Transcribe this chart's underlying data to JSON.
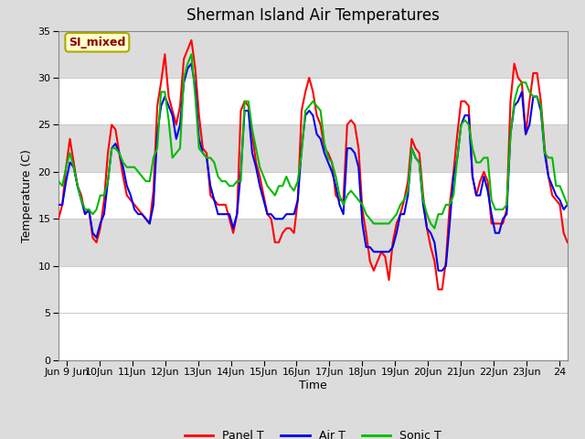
{
  "title": "Sherman Island Air Temperatures",
  "xlabel": "Time",
  "ylabel": "Temperature (C)",
  "annotation": "SI_mixed",
  "annotation_color": "#8B0000",
  "annotation_bg": "#FFFFCC",
  "annotation_edge": "#AAAA00",
  "ylim": [
    0,
    35
  ],
  "yticks": [
    0,
    5,
    10,
    15,
    20,
    25,
    30,
    35
  ],
  "xlim_start": 8.75,
  "xlim_end": 24.25,
  "xtick_positions": [
    9,
    10,
    11,
    12,
    13,
    14,
    15,
    16,
    17,
    18,
    19,
    20,
    21,
    22,
    23,
    24
  ],
  "xtick_labels": [
    "Jun 9 Jun",
    "10Jun",
    "11Jun",
    "12Jun",
    "13Jun",
    "14Jun",
    "15Jun",
    "16Jun",
    "17Jun",
    "18Jun",
    "19Jun",
    "20Jun",
    "21Jun",
    "22Jun",
    "23Jun",
    "24"
  ],
  "legend_entries": [
    "Panel T",
    "Air T",
    "Sonic T"
  ],
  "legend_colors": [
    "#FF0000",
    "#0000EE",
    "#00BB00"
  ],
  "panel_t": [
    15.0,
    16.5,
    20.5,
    23.5,
    21.0,
    18.5,
    17.5,
    15.5,
    16.0,
    13.0,
    12.5,
    14.0,
    17.0,
    22.0,
    25.0,
    24.5,
    22.0,
    19.5,
    17.5,
    17.0,
    16.5,
    16.0,
    15.5,
    15.0,
    14.5,
    18.0,
    27.0,
    29.5,
    32.5,
    28.0,
    26.5,
    25.0,
    27.0,
    32.0,
    33.0,
    34.0,
    31.0,
    26.0,
    22.5,
    22.0,
    17.5,
    17.0,
    16.5,
    16.5,
    16.5,
    15.0,
    13.5,
    15.5,
    26.5,
    27.5,
    27.0,
    24.0,
    21.0,
    19.5,
    17.5,
    15.5,
    15.0,
    12.5,
    12.5,
    13.5,
    14.0,
    14.0,
    13.5,
    17.0,
    26.5,
    28.5,
    30.0,
    28.5,
    26.0,
    25.0,
    22.5,
    22.0,
    21.0,
    17.5,
    17.0,
    17.0,
    25.0,
    25.5,
    25.0,
    22.5,
    16.0,
    13.5,
    10.5,
    9.5,
    10.5,
    11.5,
    11.0,
    8.5,
    12.5,
    14.5,
    15.5,
    17.0,
    19.0,
    23.5,
    22.5,
    22.0,
    17.5,
    14.0,
    12.0,
    10.5,
    7.5,
    7.5,
    10.5,
    16.5,
    20.0,
    24.0,
    27.5,
    27.5,
    27.0,
    19.5,
    17.5,
    19.0,
    20.0,
    19.0,
    14.5,
    14.5,
    14.5,
    14.5,
    16.0,
    27.5,
    31.5,
    30.0,
    29.5,
    24.0,
    27.5,
    30.5,
    30.5,
    27.5,
    22.5,
    19.5,
    17.5,
    17.0,
    16.5,
    13.5,
    12.5
  ],
  "air_t": [
    16.5,
    16.5,
    19.0,
    21.0,
    20.5,
    18.5,
    17.0,
    15.5,
    16.0,
    13.5,
    13.0,
    14.5,
    15.5,
    19.0,
    22.5,
    23.0,
    22.0,
    20.5,
    18.5,
    17.5,
    16.0,
    15.5,
    15.5,
    15.0,
    14.5,
    16.5,
    24.0,
    27.0,
    28.0,
    27.0,
    26.0,
    23.5,
    25.0,
    29.5,
    31.0,
    31.5,
    29.0,
    23.5,
    22.0,
    21.5,
    18.5,
    17.0,
    15.5,
    15.5,
    15.5,
    15.5,
    14.0,
    15.5,
    20.0,
    26.5,
    26.5,
    22.0,
    20.5,
    18.5,
    17.0,
    15.5,
    15.5,
    15.0,
    15.0,
    15.0,
    15.5,
    15.5,
    15.5,
    17.0,
    22.5,
    26.0,
    26.5,
    26.0,
    24.0,
    23.5,
    22.0,
    21.0,
    20.0,
    18.5,
    16.5,
    15.5,
    22.5,
    22.5,
    22.0,
    20.5,
    14.5,
    12.0,
    12.0,
    11.5,
    11.5,
    11.5,
    11.5,
    11.5,
    12.0,
    13.5,
    15.5,
    15.5,
    17.5,
    22.5,
    21.5,
    21.0,
    16.5,
    14.0,
    13.5,
    12.5,
    9.5,
    9.5,
    10.0,
    14.5,
    19.5,
    21.5,
    25.0,
    26.0,
    26.0,
    19.5,
    17.5,
    17.5,
    19.5,
    18.0,
    15.5,
    13.5,
    13.5,
    15.0,
    15.5,
    24.0,
    27.0,
    27.5,
    28.5,
    24.0,
    25.0,
    28.0,
    28.0,
    26.5,
    22.0,
    19.5,
    18.5,
    17.5,
    17.0,
    16.0,
    16.5
  ],
  "sonic_t": [
    19.0,
    18.5,
    20.5,
    22.0,
    20.5,
    18.5,
    17.0,
    16.0,
    16.0,
    15.5,
    16.0,
    17.5,
    17.5,
    19.0,
    22.5,
    22.5,
    22.0,
    21.0,
    20.5,
    20.5,
    20.5,
    20.0,
    19.5,
    19.0,
    19.0,
    21.5,
    22.5,
    28.5,
    28.5,
    25.5,
    21.5,
    22.0,
    22.5,
    30.0,
    31.5,
    32.5,
    28.0,
    22.5,
    22.0,
    21.5,
    21.5,
    21.0,
    19.5,
    19.0,
    19.0,
    18.5,
    18.5,
    19.0,
    19.0,
    27.5,
    27.5,
    24.5,
    22.5,
    20.5,
    19.5,
    18.5,
    18.0,
    17.5,
    18.5,
    18.5,
    19.5,
    18.5,
    18.0,
    19.0,
    22.0,
    26.5,
    27.0,
    27.5,
    27.0,
    26.5,
    23.0,
    21.5,
    21.0,
    19.5,
    17.5,
    16.5,
    17.5,
    18.0,
    17.5,
    17.0,
    16.5,
    15.5,
    15.0,
    14.5,
    14.5,
    14.5,
    14.5,
    14.5,
    15.0,
    15.5,
    16.5,
    17.0,
    18.0,
    22.5,
    21.5,
    21.0,
    17.0,
    15.5,
    14.5,
    14.0,
    15.5,
    15.5,
    16.5,
    16.5,
    17.5,
    21.5,
    25.0,
    25.5,
    25.0,
    22.5,
    21.0,
    21.0,
    21.5,
    21.5,
    17.0,
    16.0,
    16.0,
    16.0,
    16.5,
    24.0,
    27.5,
    29.0,
    29.5,
    29.5,
    28.5,
    28.0,
    28.0,
    27.0,
    22.0,
    21.5,
    21.5,
    18.5,
    18.5,
    17.5,
    16.5
  ],
  "panel_color": "#FF0000",
  "air_color": "#0000EE",
  "sonic_color": "#00BB00",
  "bg_outer": "#DCDCDC",
  "bg_plot": "#FFFFFF",
  "band_gray": "#DCDCDC",
  "grid_color": "#CCCCCC",
  "linewidth": 1.5,
  "band_ranges": [
    [
      10,
      15
    ],
    [
      20,
      25
    ],
    [
      30,
      35
    ]
  ],
  "title_fontsize": 12,
  "axis_fontsize": 9,
  "tick_fontsize": 8
}
